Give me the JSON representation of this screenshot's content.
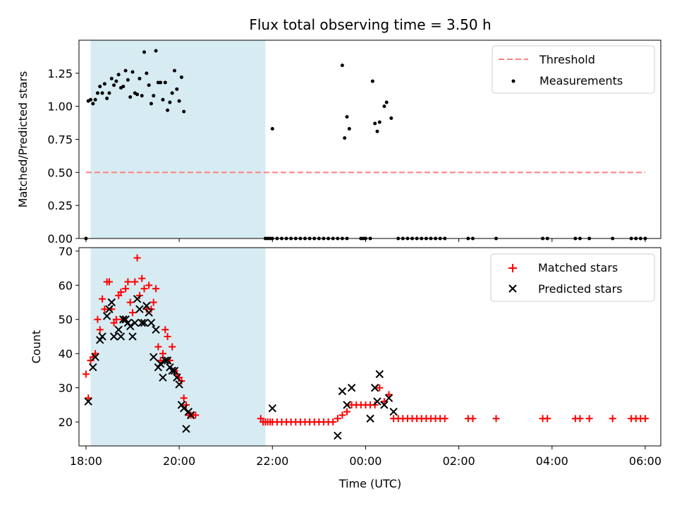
{
  "chart_data": [
    {
      "type": "scatter",
      "title": "Flux total observing time = 3.50 h",
      "ylabel": "Matched/Predicted stars",
      "ylim": [
        0,
        1.5
      ],
      "yticks": [
        "0.00",
        "0.25",
        "0.50",
        "0.75",
        "1.00",
        "1.25"
      ],
      "xlim": [
        "17:51",
        "06:20"
      ],
      "shaded_interval": [
        "18:06",
        "21:51"
      ],
      "threshold": {
        "label": "Threshold",
        "value": 0.5,
        "x": [
          "18:00",
          "06:00"
        ],
        "color": "#ff7f7f"
      },
      "legend": {
        "placement": "top-right",
        "entries": [
          "Threshold",
          "Measurements"
        ]
      },
      "series": [
        {
          "name": "Measurements",
          "color": "#000000",
          "points": [
            [
              "18:00",
              0.0
            ],
            [
              "18:03",
              1.04
            ],
            [
              "18:06",
              1.05
            ],
            [
              "18:09",
              1.02
            ],
            [
              "18:12",
              1.05
            ],
            [
              "18:15",
              1.1
            ],
            [
              "18:18",
              1.15
            ],
            [
              "18:21",
              1.1
            ],
            [
              "18:24",
              1.17
            ],
            [
              "18:27",
              1.06
            ],
            [
              "18:30",
              1.1
            ],
            [
              "18:33",
              1.21
            ],
            [
              "18:36",
              1.16
            ],
            [
              "18:39",
              1.19
            ],
            [
              "18:42",
              1.24
            ],
            [
              "18:45",
              1.14
            ],
            [
              "18:48",
              1.15
            ],
            [
              "18:51",
              1.27
            ],
            [
              "18:54",
              1.2
            ],
            [
              "18:57",
              1.07
            ],
            [
              "19:00",
              1.26
            ],
            [
              "19:03",
              1.1
            ],
            [
              "19:06",
              1.09
            ],
            [
              "19:09",
              1.21
            ],
            [
              "19:12",
              1.08
            ],
            [
              "19:15",
              1.41
            ],
            [
              "19:18",
              1.25
            ],
            [
              "19:21",
              1.16
            ],
            [
              "19:24",
              1.02
            ],
            [
              "19:27",
              1.08
            ],
            [
              "19:30",
              1.42
            ],
            [
              "19:33",
              1.18
            ],
            [
              "19:36",
              1.18
            ],
            [
              "19:39",
              1.05
            ],
            [
              "19:42",
              1.18
            ],
            [
              "19:45",
              0.97
            ],
            [
              "19:48",
              1.03
            ],
            [
              "19:51",
              1.1
            ],
            [
              "19:54",
              1.27
            ],
            [
              "19:57",
              1.13
            ],
            [
              "20:00",
              1.04
            ],
            [
              "20:03",
              1.22
            ],
            [
              "20:06",
              0.96
            ],
            [
              "21:51",
              0.0
            ],
            [
              "21:54",
              0.0
            ],
            [
              "21:57",
              0.0
            ],
            [
              "22:00",
              0.0
            ],
            [
              "22:00",
              0.83
            ],
            [
              "22:06",
              0.0
            ],
            [
              "22:12",
              0.0
            ],
            [
              "22:18",
              0.0
            ],
            [
              "22:24",
              0.0
            ],
            [
              "22:30",
              0.0
            ],
            [
              "22:36",
              0.0
            ],
            [
              "22:42",
              0.0
            ],
            [
              "22:48",
              0.0
            ],
            [
              "22:54",
              0.0
            ],
            [
              "23:00",
              0.0
            ],
            [
              "23:06",
              0.0
            ],
            [
              "23:12",
              0.0
            ],
            [
              "23:18",
              0.0
            ],
            [
              "23:24",
              0.0
            ],
            [
              "23:30",
              0.0
            ],
            [
              "23:36",
              0.0
            ],
            [
              "23:30",
              1.31
            ],
            [
              "23:33",
              0.76
            ],
            [
              "23:36",
              0.92
            ],
            [
              "23:39",
              0.83
            ],
            [
              "23:54",
              0.0
            ],
            [
              "23:57",
              0.0
            ],
            [
              "00:00",
              0.0
            ],
            [
              "00:06",
              0.0
            ],
            [
              "00:09",
              1.19
            ],
            [
              "00:12",
              0.87
            ],
            [
              "00:15",
              0.81
            ],
            [
              "00:18",
              0.88
            ],
            [
              "00:24",
              1.0
            ],
            [
              "00:27",
              1.03
            ],
            [
              "00:33",
              0.91
            ],
            [
              "00:42",
              0.0
            ],
            [
              "00:48",
              0.0
            ],
            [
              "00:54",
              0.0
            ],
            [
              "01:00",
              0.0
            ],
            [
              "01:06",
              0.0
            ],
            [
              "01:12",
              0.0
            ],
            [
              "01:18",
              0.0
            ],
            [
              "01:24",
              0.0
            ],
            [
              "01:30",
              0.0
            ],
            [
              "01:36",
              0.0
            ],
            [
              "01:42",
              0.0
            ],
            [
              "02:12",
              0.0
            ],
            [
              "02:18",
              0.0
            ],
            [
              "02:48",
              0.0
            ],
            [
              "03:48",
              0.0
            ],
            [
              "03:54",
              0.0
            ],
            [
              "04:30",
              0.0
            ],
            [
              "04:36",
              0.0
            ],
            [
              "04:48",
              0.0
            ],
            [
              "05:18",
              0.0
            ],
            [
              "05:42",
              0.0
            ],
            [
              "05:48",
              0.0
            ],
            [
              "05:54",
              0.0
            ],
            [
              "06:00",
              0.0
            ]
          ]
        }
      ]
    },
    {
      "type": "scatter",
      "xlabel": "Time (UTC)",
      "ylabel": "Count",
      "ylim": [
        13,
        71
      ],
      "yticks": [
        "20",
        "30",
        "40",
        "50",
        "60",
        "70"
      ],
      "xlim": [
        "17:51",
        "06:20"
      ],
      "xticks": [
        "18:00",
        "20:00",
        "22:00",
        "00:00",
        "02:00",
        "04:00",
        "06:00"
      ],
      "shaded_interval": [
        "18:06",
        "21:51"
      ],
      "legend": {
        "placement": "top-right",
        "entries": [
          "Matched stars",
          "Predicted stars"
        ]
      },
      "series": [
        {
          "name": "Matched stars",
          "color": "#ff0000",
          "points": [
            [
              "18:00",
              34
            ],
            [
              "18:03",
              27
            ],
            [
              "18:06",
              38
            ],
            [
              "18:09",
              39
            ],
            [
              "18:12",
              40
            ],
            [
              "18:15",
              50
            ],
            [
              "18:18",
              47
            ],
            [
              "18:21",
              56
            ],
            [
              "18:24",
              53
            ],
            [
              "18:27",
              61
            ],
            [
              "18:30",
              61
            ],
            [
              "18:33",
              53
            ],
            [
              "18:36",
              49
            ],
            [
              "18:39",
              50
            ],
            [
              "18:42",
              57
            ],
            [
              "18:45",
              58
            ],
            [
              "18:48",
              50
            ],
            [
              "18:51",
              59
            ],
            [
              "18:54",
              61
            ],
            [
              "18:57",
              55
            ],
            [
              "19:00",
              52
            ],
            [
              "19:03",
              61
            ],
            [
              "19:06",
              68
            ],
            [
              "19:09",
              57
            ],
            [
              "19:12",
              62
            ],
            [
              "19:15",
              59
            ],
            [
              "19:18",
              53
            ],
            [
              "19:21",
              60
            ],
            [
              "19:24",
              53
            ],
            [
              "19:27",
              55
            ],
            [
              "19:30",
              59
            ],
            [
              "19:33",
              42
            ],
            [
              "19:36",
              38
            ],
            [
              "19:39",
              40
            ],
            [
              "19:42",
              47
            ],
            [
              "19:45",
              45
            ],
            [
              "19:48",
              38
            ],
            [
              "19:51",
              42
            ],
            [
              "19:54",
              35
            ],
            [
              "19:57",
              34
            ],
            [
              "20:00",
              33
            ],
            [
              "20:03",
              32
            ],
            [
              "20:06",
              27
            ],
            [
              "20:09",
              25
            ],
            [
              "20:12",
              22
            ],
            [
              "20:15",
              22
            ],
            [
              "20:18",
              22
            ],
            [
              "20:21",
              22
            ],
            [
              "21:45",
              21
            ],
            [
              "21:48",
              20
            ],
            [
              "21:51",
              20
            ],
            [
              "21:54",
              20
            ],
            [
              "21:57",
              20
            ],
            [
              "22:00",
              20
            ],
            [
              "22:06",
              20
            ],
            [
              "22:12",
              20
            ],
            [
              "22:18",
              20
            ],
            [
              "22:24",
              20
            ],
            [
              "22:30",
              20
            ],
            [
              "22:36",
              20
            ],
            [
              "22:42",
              20
            ],
            [
              "22:48",
              20
            ],
            [
              "22:54",
              20
            ],
            [
              "23:00",
              20
            ],
            [
              "23:06",
              20
            ],
            [
              "23:12",
              20
            ],
            [
              "23:18",
              20
            ],
            [
              "23:24",
              21
            ],
            [
              "23:30",
              22
            ],
            [
              "23:36",
              23
            ],
            [
              "23:42",
              25
            ],
            [
              "23:48",
              25
            ],
            [
              "23:54",
              25
            ],
            [
              "00:00",
              25
            ],
            [
              "00:06",
              25
            ],
            [
              "00:12",
              25
            ],
            [
              "00:18",
              30
            ],
            [
              "00:24",
              26
            ],
            [
              "00:30",
              28
            ],
            [
              "00:36",
              21
            ],
            [
              "00:42",
              21
            ],
            [
              "00:48",
              21
            ],
            [
              "00:54",
              21
            ],
            [
              "01:00",
              21
            ],
            [
              "01:06",
              21
            ],
            [
              "01:12",
              21
            ],
            [
              "01:18",
              21
            ],
            [
              "01:24",
              21
            ],
            [
              "01:30",
              21
            ],
            [
              "01:36",
              21
            ],
            [
              "01:42",
              21
            ],
            [
              "02:12",
              21
            ],
            [
              "02:18",
              21
            ],
            [
              "02:48",
              21
            ],
            [
              "03:48",
              21
            ],
            [
              "03:54",
              21
            ],
            [
              "04:30",
              21
            ],
            [
              "04:36",
              21
            ],
            [
              "04:48",
              21
            ],
            [
              "05:18",
              21
            ],
            [
              "05:42",
              21
            ],
            [
              "05:48",
              21
            ],
            [
              "05:54",
              21
            ],
            [
              "06:00",
              21
            ]
          ]
        },
        {
          "name": "Predicted stars",
          "color": "#000000",
          "points": [
            [
              "18:03",
              26
            ],
            [
              "18:09",
              36
            ],
            [
              "18:12",
              39
            ],
            [
              "18:18",
              44
            ],
            [
              "18:21",
              45
            ],
            [
              "18:27",
              51
            ],
            [
              "18:30",
              53
            ],
            [
              "18:33",
              55
            ],
            [
              "18:36",
              45
            ],
            [
              "18:42",
              47
            ],
            [
              "18:45",
              45
            ],
            [
              "18:48",
              50
            ],
            [
              "18:51",
              50
            ],
            [
              "18:54",
              49
            ],
            [
              "18:57",
              48
            ],
            [
              "19:00",
              45
            ],
            [
              "19:03",
              49
            ],
            [
              "19:06",
              56
            ],
            [
              "19:09",
              53
            ],
            [
              "19:12",
              49
            ],
            [
              "19:15",
              49
            ],
            [
              "19:18",
              54
            ],
            [
              "19:21",
              52
            ],
            [
              "19:24",
              49
            ],
            [
              "19:27",
              39
            ],
            [
              "19:30",
              47
            ],
            [
              "19:33",
              36
            ],
            [
              "19:36",
              37
            ],
            [
              "19:39",
              33
            ],
            [
              "19:42",
              38
            ],
            [
              "19:45",
              38
            ],
            [
              "19:48",
              36
            ],
            [
              "19:51",
              35
            ],
            [
              "19:54",
              35
            ],
            [
              "19:57",
              33
            ],
            [
              "20:00",
              31
            ],
            [
              "20:03",
              25
            ],
            [
              "20:06",
              24
            ],
            [
              "20:09",
              18
            ],
            [
              "20:12",
              23
            ],
            [
              "20:15",
              22
            ],
            [
              "22:00",
              24
            ],
            [
              "23:24",
              16
            ],
            [
              "23:30",
              29
            ],
            [
              "23:36",
              25
            ],
            [
              "23:42",
              30
            ],
            [
              "00:06",
              21
            ],
            [
              "00:12",
              30
            ],
            [
              "00:15",
              26
            ],
            [
              "00:18",
              34
            ],
            [
              "00:24",
              25
            ],
            [
              "00:30",
              27
            ],
            [
              "00:36",
              23
            ]
          ]
        }
      ]
    }
  ]
}
